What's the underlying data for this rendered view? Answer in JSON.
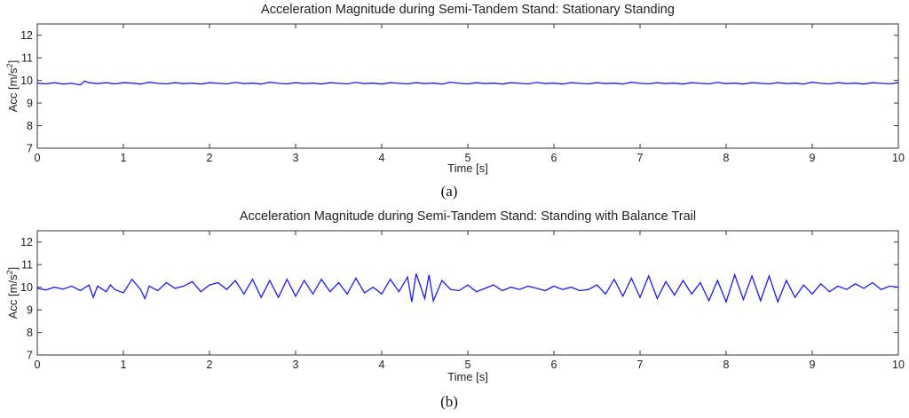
{
  "chart_data": [
    {
      "type": "line",
      "panel_label": "(a)",
      "title": "Acceleration Magnitude during Semi-Tandem Stand: Stationary Standing",
      "xlabel": "Time [s]",
      "ylabel_prefix": "Acc [m/s",
      "ylabel_sup": "2",
      "ylabel_suffix": "]",
      "xlim": [
        0,
        10
      ],
      "ylim": [
        7,
        12.5
      ],
      "xticks": [
        "0",
        "1",
        "2",
        "3",
        "4",
        "5",
        "6",
        "7",
        "8",
        "9",
        "10"
      ],
      "yticks": [
        "7",
        "8",
        "9",
        "10",
        "11",
        "12"
      ],
      "grid": false,
      "series": [
        {
          "color": "#1a1aff",
          "x": [
            0,
            0.1,
            0.2,
            0.3,
            0.4,
            0.5,
            0.55,
            0.6,
            0.7,
            0.8,
            0.9,
            1.0,
            1.1,
            1.2,
            1.3,
            1.4,
            1.5,
            1.6,
            1.7,
            1.8,
            1.9,
            2.0,
            2.1,
            2.2,
            2.3,
            2.4,
            2.5,
            2.6,
            2.7,
            2.8,
            2.9,
            3.0,
            3.1,
            3.2,
            3.3,
            3.4,
            3.5,
            3.6,
            3.7,
            3.8,
            3.9,
            4.0,
            4.1,
            4.2,
            4.3,
            4.4,
            4.5,
            4.6,
            4.7,
            4.8,
            4.9,
            5.0,
            5.1,
            5.2,
            5.3,
            5.4,
            5.5,
            5.6,
            5.7,
            5.8,
            5.9,
            6.0,
            6.1,
            6.2,
            6.3,
            6.4,
            6.5,
            6.6,
            6.7,
            6.8,
            6.9,
            7.0,
            7.1,
            7.2,
            7.3,
            7.4,
            7.5,
            7.6,
            7.7,
            7.8,
            7.9,
            8.0,
            8.1,
            8.2,
            8.3,
            8.4,
            8.5,
            8.6,
            8.7,
            8.8,
            8.9,
            9.0,
            9.1,
            9.2,
            9.3,
            9.4,
            9.5,
            9.6,
            9.7,
            9.8,
            9.9,
            10.0
          ],
          "y": [
            9.88,
            9.85,
            9.9,
            9.84,
            9.87,
            9.8,
            9.97,
            9.9,
            9.86,
            9.9,
            9.85,
            9.9,
            9.88,
            9.84,
            9.92,
            9.87,
            9.85,
            9.9,
            9.86,
            9.88,
            9.84,
            9.9,
            9.87,
            9.85,
            9.91,
            9.86,
            9.88,
            9.84,
            9.92,
            9.87,
            9.85,
            9.9,
            9.86,
            9.88,
            9.84,
            9.9,
            9.87,
            9.85,
            9.91,
            9.86,
            9.88,
            9.84,
            9.9,
            9.87,
            9.85,
            9.9,
            9.86,
            9.88,
            9.84,
            9.92,
            9.87,
            9.85,
            9.9,
            9.86,
            9.88,
            9.84,
            9.9,
            9.87,
            9.85,
            9.91,
            9.86,
            9.88,
            9.84,
            9.9,
            9.87,
            9.85,
            9.9,
            9.86,
            9.88,
            9.84,
            9.92,
            9.87,
            9.85,
            9.9,
            9.86,
            9.88,
            9.84,
            9.9,
            9.87,
            9.85,
            9.91,
            9.86,
            9.88,
            9.84,
            9.9,
            9.87,
            9.85,
            9.9,
            9.86,
            9.88,
            9.84,
            9.92,
            9.87,
            9.85,
            9.9,
            9.86,
            9.88,
            9.84,
            9.9,
            9.87,
            9.85,
            9.9
          ]
        }
      ]
    },
    {
      "type": "line",
      "panel_label": "(b)",
      "title": "Acceleration Magnitude during Semi-Tandem Stand: Standing with Balance Trail",
      "xlabel": "Time [s]",
      "ylabel_prefix": "Acc [m/s",
      "ylabel_sup": "2",
      "ylabel_suffix": "]",
      "xlim": [
        0,
        10
      ],
      "ylim": [
        7,
        12.5
      ],
      "xticks": [
        "0",
        "1",
        "2",
        "3",
        "4",
        "5",
        "6",
        "7",
        "8",
        "9",
        "10"
      ],
      "yticks": [
        "7",
        "8",
        "9",
        "10",
        "11",
        "12"
      ],
      "grid": false,
      "series": [
        {
          "color": "#1a1aff",
          "x": [
            0,
            0.1,
            0.2,
            0.3,
            0.4,
            0.5,
            0.6,
            0.65,
            0.7,
            0.8,
            0.85,
            0.9,
            1.0,
            1.1,
            1.2,
            1.25,
            1.3,
            1.4,
            1.5,
            1.6,
            1.7,
            1.8,
            1.9,
            2.0,
            2.1,
            2.2,
            2.3,
            2.4,
            2.5,
            2.6,
            2.7,
            2.8,
            2.9,
            3.0,
            3.1,
            3.2,
            3.3,
            3.4,
            3.5,
            3.6,
            3.7,
            3.8,
            3.9,
            4.0,
            4.1,
            4.2,
            4.3,
            4.35,
            4.4,
            4.5,
            4.55,
            4.6,
            4.7,
            4.8,
            4.9,
            5.0,
            5.1,
            5.2,
            5.3,
            5.4,
            5.5,
            5.6,
            5.7,
            5.8,
            5.9,
            6.0,
            6.1,
            6.2,
            6.3,
            6.4,
            6.5,
            6.6,
            6.7,
            6.8,
            6.9,
            7.0,
            7.1,
            7.2,
            7.3,
            7.4,
            7.5,
            7.6,
            7.7,
            7.8,
            7.9,
            8.0,
            8.1,
            8.2,
            8.3,
            8.4,
            8.5,
            8.6,
            8.7,
            8.8,
            8.9,
            9.0,
            9.1,
            9.2,
            9.3,
            9.4,
            9.5,
            9.6,
            9.7,
            9.8,
            9.9,
            10.0
          ],
          "y": [
            9.95,
            9.88,
            10.0,
            9.92,
            10.05,
            9.85,
            10.1,
            9.55,
            10.05,
            9.8,
            10.1,
            9.9,
            9.75,
            10.35,
            9.9,
            9.5,
            10.05,
            9.85,
            10.2,
            9.95,
            10.05,
            10.25,
            9.8,
            10.1,
            10.2,
            9.9,
            10.3,
            9.7,
            10.35,
            9.55,
            10.3,
            9.55,
            10.35,
            9.6,
            10.3,
            9.7,
            10.35,
            9.8,
            10.2,
            9.7,
            10.4,
            9.75,
            10.0,
            9.7,
            10.35,
            9.8,
            10.45,
            9.35,
            10.6,
            9.5,
            10.55,
            9.4,
            10.3,
            9.9,
            9.85,
            10.1,
            9.8,
            9.95,
            10.1,
            9.85,
            10.0,
            9.9,
            10.05,
            9.95,
            9.85,
            10.05,
            9.9,
            10.0,
            9.85,
            9.9,
            10.1,
            9.7,
            10.35,
            9.6,
            10.4,
            9.55,
            10.5,
            9.5,
            10.25,
            9.65,
            10.3,
            9.7,
            10.2,
            9.4,
            10.3,
            9.35,
            10.55,
            9.45,
            10.5,
            9.4,
            10.5,
            9.35,
            10.3,
            9.55,
            10.1,
            9.7,
            10.15,
            9.8,
            10.05,
            9.9,
            10.15,
            9.95,
            10.2,
            9.9,
            10.05,
            10.0
          ]
        }
      ]
    }
  ]
}
